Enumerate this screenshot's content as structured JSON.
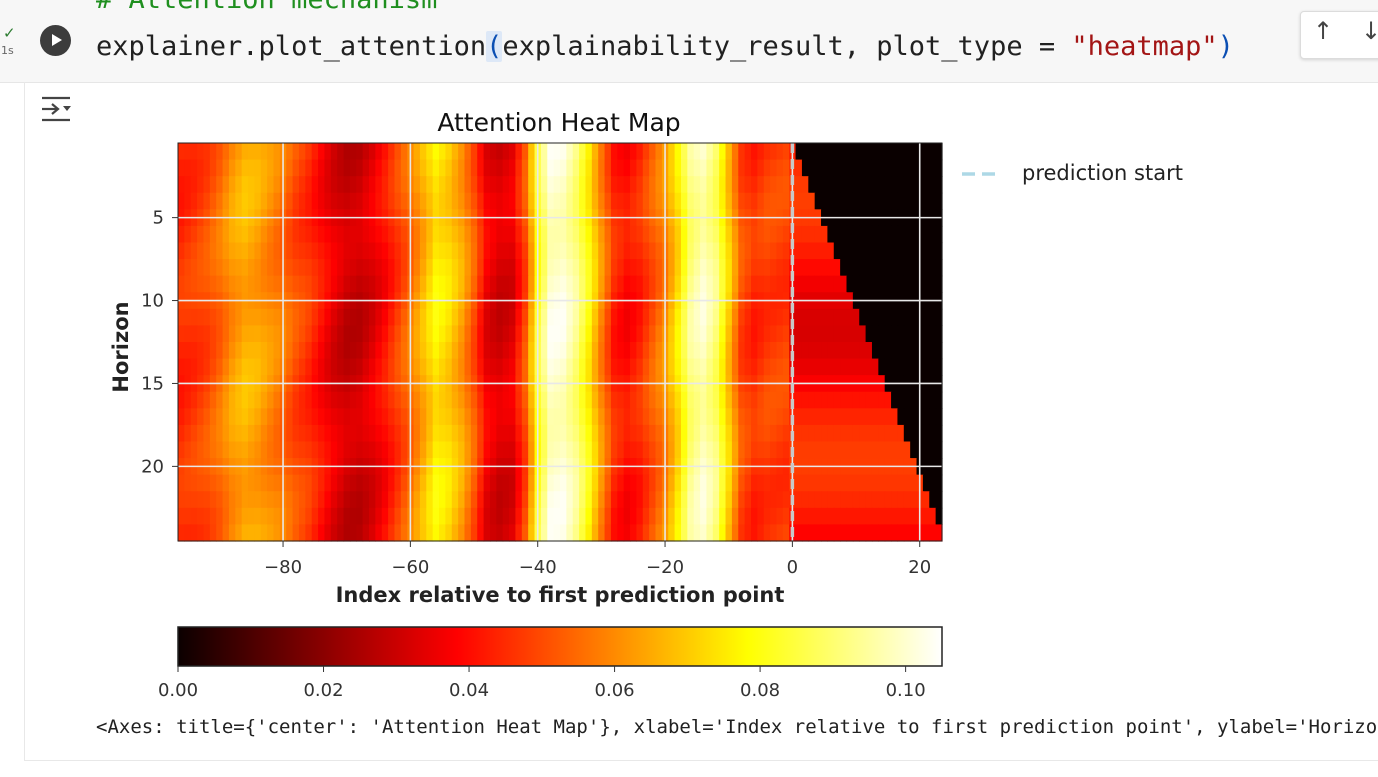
{
  "cell": {
    "comment_line": "# Attention mechanism",
    "code": {
      "obj": "explainer.plot_attention",
      "open_paren": "(",
      "args": "explainability_result, plot_type = ",
      "string_arg": "\"heatmap\"",
      "close_paren": ")"
    },
    "exec_status": "✓",
    "exec_time": "1s",
    "toolbar": {
      "move_up": "↑",
      "move_down": "↓"
    },
    "run_icon": "play-circle-icon",
    "output_toggle_icon": "output-options-icon"
  },
  "output": {
    "axes_repr": "<Axes: title={'center': 'Attention Heat Map'}, xlabel='Index relative to first prediction point', ylabel='Horizon'>"
  },
  "chart_data": {
    "type": "heatmap",
    "title": "Attention Heat Map",
    "xlabel": "Index relative to first prediction point",
    "ylabel": "Horizon",
    "xlim": [
      -96,
      23
    ],
    "ylim": [
      24,
      1
    ],
    "x_ticks": [
      -80,
      -60,
      -40,
      -20,
      0,
      20
    ],
    "x_tick_labels": [
      "−80",
      "−60",
      "−40",
      "−20",
      "0",
      "20"
    ],
    "y_ticks": [
      5,
      10,
      15,
      20
    ],
    "y_tick_labels": [
      "5",
      "10",
      "15",
      "20"
    ],
    "grid": true,
    "legend": {
      "label": "prediction start",
      "position": "outside right",
      "line_color": "#add8e6",
      "line_style": "dashed"
    },
    "prediction_start_x": 0,
    "colormap": "hot",
    "colorbar": {
      "orientation": "horizontal",
      "range": [
        0,
        0.105
      ],
      "ticks": [
        0,
        0.02,
        0.04,
        0.06,
        0.08,
        0.1
      ],
      "tick_labels": [
        "0.00",
        "0.02",
        "0.04",
        "0.06",
        "0.08",
        "0.10"
      ]
    },
    "column_attention_profile": {
      "x": [
        -96,
        -94,
        -92,
        -90,
        -88,
        -86,
        -84,
        -82,
        -80,
        -78,
        -76,
        -74,
        -72,
        -70,
        -68,
        -66,
        -64,
        -62,
        -60,
        -58,
        -56,
        -54,
        -52,
        -50,
        -48,
        -46,
        -44,
        -42,
        -40,
        -38,
        -36,
        -34,
        -32,
        -30,
        -28,
        -26,
        -24,
        -22,
        -20,
        -18,
        -16,
        -14,
        -12,
        -10,
        -8,
        -6,
        -4,
        -2
      ],
      "values": [
        0.045,
        0.047,
        0.05,
        0.055,
        0.062,
        0.066,
        0.064,
        0.06,
        0.056,
        0.05,
        0.046,
        0.04,
        0.034,
        0.03,
        0.03,
        0.034,
        0.04,
        0.048,
        0.056,
        0.066,
        0.076,
        0.072,
        0.064,
        0.052,
        0.036,
        0.032,
        0.034,
        0.05,
        0.082,
        0.1,
        0.1,
        0.092,
        0.078,
        0.06,
        0.044,
        0.04,
        0.044,
        0.052,
        0.06,
        0.074,
        0.092,
        0.098,
        0.09,
        0.07,
        0.05,
        0.045,
        0.048,
        0.048
      ]
    },
    "masked_region": "x > horizon − 25 (future positions beyond current horizon) = 0.00",
    "future_region_value": 0.04
  }
}
